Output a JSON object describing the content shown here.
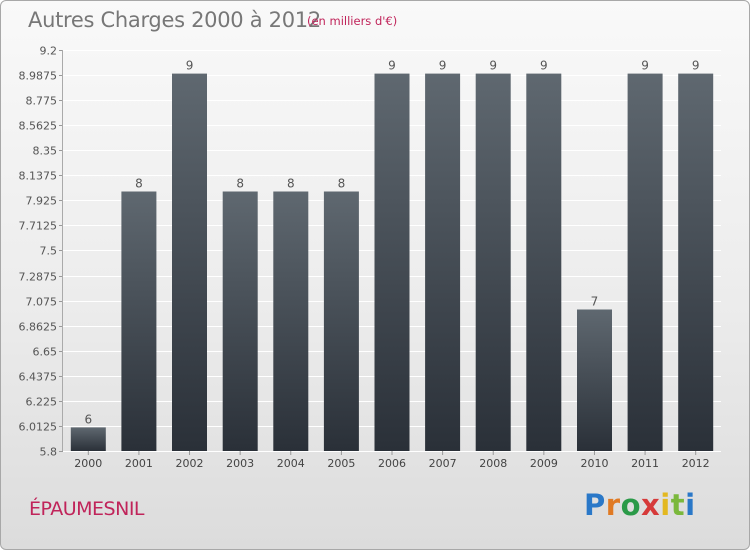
{
  "header": {
    "title": "Autres Charges 2000 à 2012",
    "unit": "(en milliers d'€)"
  },
  "commune": "ÉPAUMESNIL",
  "logo": {
    "text": "Proxiti"
  },
  "colors": {
    "bar_top": "#5f6870",
    "bar_bottom": "#2a3038",
    "grid": "#ffffff",
    "title": "#777777",
    "accent": "#c0245a"
  },
  "chart_data": {
    "type": "bar",
    "categories": [
      "2000",
      "2001",
      "2002",
      "2003",
      "2004",
      "2005",
      "2006",
      "2007",
      "2008",
      "2009",
      "2010",
      "2011",
      "2012"
    ],
    "values": [
      6,
      8,
      9,
      8,
      8,
      8,
      9,
      9,
      9,
      9,
      7,
      9,
      9
    ],
    "data_labels": [
      "6",
      "8",
      "9",
      "8",
      "8",
      "8",
      "9",
      "9",
      "9",
      "9",
      "7",
      "9",
      "9"
    ],
    "title": "Autres Charges 2000 à 2012",
    "subtitle": "(en milliers d'€)",
    "xlabel": "",
    "ylabel": "",
    "ylim": [
      5.8,
      9.2
    ],
    "yticks": [
      9.2,
      8.9875,
      8.775,
      8.5625,
      8.35,
      8.1375,
      7.925,
      7.7125,
      7.5,
      7.2875,
      7.075,
      6.8625,
      6.65,
      6.4375,
      6.225,
      6.0125,
      5.8
    ],
    "ytick_labels": [
      "9.2",
      "8.9875",
      "8.775",
      "8.5625",
      "8.35",
      "8.1375",
      "7.925",
      "7.7125",
      "7.5",
      "7.2875",
      "7.075",
      "6.8625",
      "6.65",
      "6.4375",
      "6.225",
      "6.0125",
      "5.8"
    ],
    "grid": true,
    "legend": "none"
  }
}
